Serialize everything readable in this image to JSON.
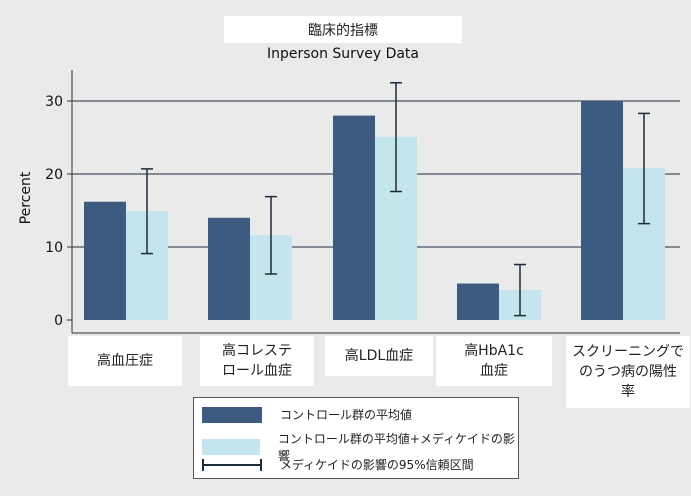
{
  "chart_data": {
    "type": "bar",
    "subtitle": "臨床的指標",
    "title": "Inperson Survey Data",
    "ylabel": "Percent",
    "xlabel": "",
    "ylim": [
      0,
      33
    ],
    "yticks": [
      0,
      10,
      20,
      30
    ],
    "categories": [
      "高血圧症",
      "高コレステ\nロール血症",
      "高LDL血症",
      "高HbA1c\n血症",
      "スクリーニングで\nのうつ病の陽性\n率"
    ],
    "series": [
      {
        "name": "コントロール群の平均値",
        "color": "#3d5a80",
        "values": [
          16.2,
          14.0,
          28.0,
          5.0,
          30.0
        ]
      },
      {
        "name": "コントロール群の平均値+メディケイドの影響",
        "color": "#c4e4ee",
        "values": [
          14.9,
          11.6,
          25.1,
          4.1,
          20.8
        ]
      }
    ],
    "error_bars": {
      "name": "メディケイドの影響の95%信頼区間",
      "color": "#1d2b3a",
      "series": "コントロール群の平均値+メディケイドの影響",
      "lower": [
        9.1,
        6.3,
        17.6,
        0.6,
        13.2
      ],
      "upper": [
        20.7,
        16.9,
        32.5,
        7.6,
        28.3
      ]
    },
    "grid": true,
    "legend_position": "bottom"
  }
}
